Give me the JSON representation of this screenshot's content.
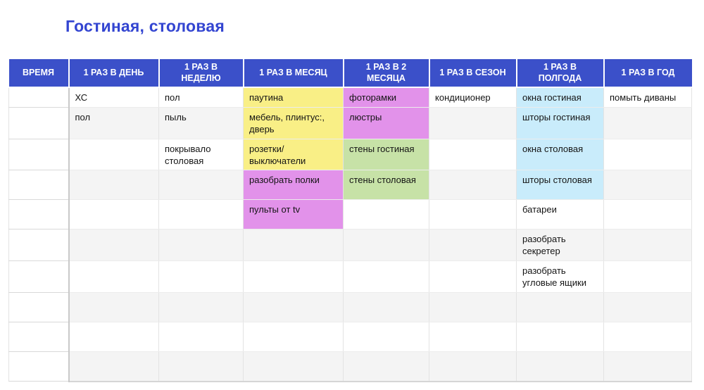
{
  "title": "Гостиная, столовая",
  "colors": {
    "title_text": "#3345d1",
    "header_bg": "#3b50c9",
    "header_text": "#ffffff",
    "yellow": "#f9ef86",
    "magenta": "#e292ea",
    "green": "#c7e2a7",
    "blue": "#c9ecfb",
    "stripe": "#f4f4f4"
  },
  "table": {
    "columns": [
      {
        "label": "ВРЕМЯ"
      },
      {
        "label": "1 РАЗ В ДЕНЬ"
      },
      {
        "label": "1 РАЗ В НЕДЕЛЮ"
      },
      {
        "label": "1 РАЗ В МЕСЯЦ"
      },
      {
        "label": "1 РАЗ В 2 МЕСЯЦА"
      },
      {
        "label": "1 РАЗ В СЕЗОН"
      },
      {
        "label": "1 РАЗ В ПОЛГОДА"
      },
      {
        "label": "1 РАЗ В ГОД"
      }
    ],
    "rows": [
      {
        "cells": [
          {
            "text": ""
          },
          {
            "text": "ХС"
          },
          {
            "text": "пол"
          },
          {
            "text": "паутина",
            "bg": "yellow"
          },
          {
            "text": "фоторамки",
            "bg": "magenta"
          },
          {
            "text": "кондиционер"
          },
          {
            "text": "окна гостиная",
            "bg": "blue"
          },
          {
            "text": "помыть диваны"
          }
        ]
      },
      {
        "cells": [
          {
            "text": ""
          },
          {
            "text": "пол"
          },
          {
            "text": "пыль"
          },
          {
            "text": "мебель, плинтус:,\nдверь",
            "bg": "yellow"
          },
          {
            "text": "люстры",
            "bg": "magenta"
          },
          {
            "text": ""
          },
          {
            "text": "шторы гостиная",
            "bg": "blue"
          },
          {
            "text": ""
          }
        ]
      },
      {
        "cells": [
          {
            "text": ""
          },
          {
            "text": ""
          },
          {
            "text": "покрывало\nстоловая"
          },
          {
            "text": "розетки/\nвыключатели",
            "bg": "yellow"
          },
          {
            "text": "стены гостиная",
            "bg": "green"
          },
          {
            "text": ""
          },
          {
            "text": "окна столовая",
            "bg": "blue"
          },
          {
            "text": ""
          }
        ]
      },
      {
        "cells": [
          {
            "text": ""
          },
          {
            "text": ""
          },
          {
            "text": ""
          },
          {
            "text": "разобрать полки",
            "bg": "magenta"
          },
          {
            "text": "стены столовая",
            "bg": "green"
          },
          {
            "text": ""
          },
          {
            "text": "шторы столовая",
            "bg": "blue"
          },
          {
            "text": ""
          }
        ]
      },
      {
        "cells": [
          {
            "text": ""
          },
          {
            "text": ""
          },
          {
            "text": ""
          },
          {
            "text": "пульты от tv",
            "bg": "magenta"
          },
          {
            "text": ""
          },
          {
            "text": ""
          },
          {
            "text": "батареи"
          },
          {
            "text": ""
          }
        ]
      },
      {
        "cells": [
          {
            "text": ""
          },
          {
            "text": ""
          },
          {
            "text": ""
          },
          {
            "text": ""
          },
          {
            "text": ""
          },
          {
            "text": ""
          },
          {
            "text": "разобрать\nсекретер"
          },
          {
            "text": ""
          }
        ]
      },
      {
        "cells": [
          {
            "text": ""
          },
          {
            "text": ""
          },
          {
            "text": ""
          },
          {
            "text": ""
          },
          {
            "text": ""
          },
          {
            "text": ""
          },
          {
            "text": "разобрать\nугловые ящики"
          },
          {
            "text": ""
          }
        ]
      },
      {
        "cells": [
          {
            "text": ""
          },
          {
            "text": ""
          },
          {
            "text": ""
          },
          {
            "text": ""
          },
          {
            "text": ""
          },
          {
            "text": ""
          },
          {
            "text": ""
          },
          {
            "text": ""
          }
        ]
      },
      {
        "cells": [
          {
            "text": ""
          },
          {
            "text": ""
          },
          {
            "text": ""
          },
          {
            "text": ""
          },
          {
            "text": ""
          },
          {
            "text": ""
          },
          {
            "text": ""
          },
          {
            "text": ""
          }
        ]
      },
      {
        "cells": [
          {
            "text": ""
          },
          {
            "text": ""
          },
          {
            "text": ""
          },
          {
            "text": ""
          },
          {
            "text": ""
          },
          {
            "text": ""
          },
          {
            "text": ""
          },
          {
            "text": ""
          }
        ]
      }
    ]
  }
}
